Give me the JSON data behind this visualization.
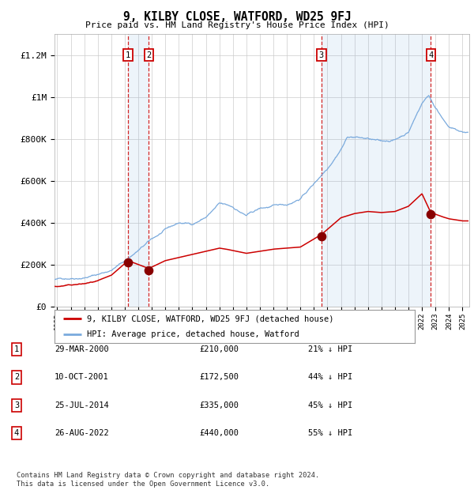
{
  "title": "9, KILBY CLOSE, WATFORD, WD25 9FJ",
  "subtitle": "Price paid vs. HM Land Registry's House Price Index (HPI)",
  "footer": "Contains HM Land Registry data © Crown copyright and database right 2024.\nThis data is licensed under the Open Government Licence v3.0.",
  "legend_entries": [
    "9, KILBY CLOSE, WATFORD, WD25 9FJ (detached house)",
    "HPI: Average price, detached house, Watford"
  ],
  "sales": [
    {
      "num": 1,
      "date_label": "29-MAR-2000",
      "price_label": "£210,000",
      "pct_label": "21% ↓ HPI",
      "year": 2000.25,
      "price": 210000
    },
    {
      "num": 2,
      "date_label": "10-OCT-2001",
      "price_label": "£172,500",
      "pct_label": "44% ↓ HPI",
      "year": 2001.78,
      "price": 172500
    },
    {
      "num": 3,
      "date_label": "25-JUL-2014",
      "price_label": "£335,000",
      "pct_label": "45% ↓ HPI",
      "year": 2014.56,
      "price": 335000
    },
    {
      "num": 4,
      "date_label": "26-AUG-2022",
      "price_label": "£440,000",
      "pct_label": "55% ↓ HPI",
      "year": 2022.65,
      "price": 440000
    }
  ],
  "hpi_color": "#7aaadd",
  "sale_color": "#cc0000",
  "sale_dot_color": "#880000",
  "grid_color": "#cccccc",
  "bg_color": "#ffffff",
  "plot_bg_color": "#ffffff",
  "xlim": [
    1994.8,
    2025.5
  ],
  "ylim": [
    0,
    1300000
  ],
  "yticks": [
    0,
    200000,
    400000,
    600000,
    800000,
    1000000,
    1200000
  ],
  "ytick_labels": [
    "£0",
    "£200K",
    "£400K",
    "£600K",
    "£800K",
    "£1M",
    "£1.2M"
  ],
  "xticks": [
    1995,
    1996,
    1997,
    1998,
    1999,
    2000,
    2001,
    2002,
    2003,
    2004,
    2005,
    2006,
    2007,
    2008,
    2009,
    2010,
    2011,
    2012,
    2013,
    2014,
    2015,
    2016,
    2017,
    2018,
    2019,
    2020,
    2021,
    2022,
    2023,
    2024,
    2025
  ]
}
